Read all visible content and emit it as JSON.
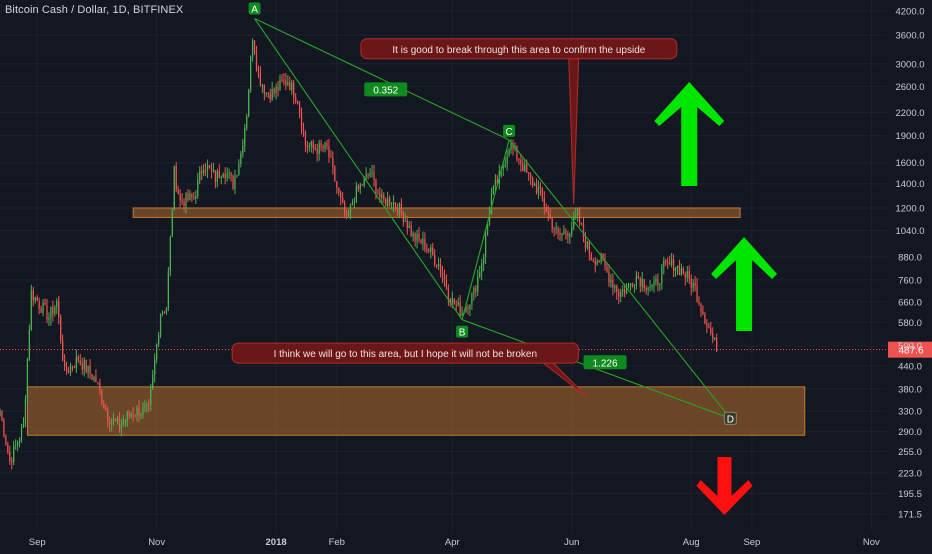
{
  "title": "Bitcoin Cash / Dollar, 1D, BITFINEX",
  "colors": {
    "background": "#131722",
    "grid": "#1e2230",
    "axis_text": "#c8ccd6",
    "candle_up": "#4caf50",
    "candle_down": "#ef5350",
    "pattern_line": "#26a726",
    "zone_fill": "#a0632a",
    "zone_stroke": "#c27a35",
    "callout_fill": "#6b1717",
    "callout_border": "#b32a2a",
    "green_label": "#0f8a1e",
    "price_line": "#ef5350",
    "arrow_green": "#00e600",
    "arrow_red": "#ff1010"
  },
  "chart_data": {
    "type": "candlestick",
    "symbol": "Bitcoin Cash / Dollar",
    "interval": "1D",
    "exchange": "BITFINEX",
    "y_scale": "log",
    "ylim": [
      155,
      4500
    ],
    "x_range": [
      "2017-08-13",
      "2018-11-09"
    ],
    "x_tick_labels": [
      {
        "date": "2017-09-01",
        "label": "Sep"
      },
      {
        "date": "2017-11-01",
        "label": "Nov"
      },
      {
        "date": "2018-01-01",
        "label": "2018"
      },
      {
        "date": "2018-02-01",
        "label": "Feb"
      },
      {
        "date": "2018-04-01",
        "label": "Apr"
      },
      {
        "date": "2018-06-01",
        "label": "Jun"
      },
      {
        "date": "2018-08-01",
        "label": "Aug"
      },
      {
        "date": "2018-09-01",
        "label": "Sep"
      },
      {
        "date": "2018-11-01",
        "label": "Nov"
      }
    ],
    "y_tick_labels": [
      {
        "value": 4200,
        "label": "4200.0"
      },
      {
        "value": 3600,
        "label": "3600.0"
      },
      {
        "value": 3000,
        "label": "3000.0"
      },
      {
        "value": 2600,
        "label": "2600.0"
      },
      {
        "value": 2200,
        "label": "2200.0"
      },
      {
        "value": 1900,
        "label": "1900.0"
      },
      {
        "value": 1600,
        "label": "1600.0"
      },
      {
        "value": 1400,
        "label": "1400.0"
      },
      {
        "value": 1200,
        "label": "1200.0"
      },
      {
        "value": 1040,
        "label": "1040.0"
      },
      {
        "value": 880,
        "label": "880.0"
      },
      {
        "value": 760,
        "label": "760.0"
      },
      {
        "value": 660,
        "label": "660.0"
      },
      {
        "value": 580,
        "label": "580.0"
      },
      {
        "value": 500,
        "label": "500.0"
      },
      {
        "value": 440,
        "label": "440.0"
      },
      {
        "value": 380,
        "label": "380.0"
      },
      {
        "value": 330,
        "label": "330.0"
      },
      {
        "value": 290,
        "label": "290.0"
      },
      {
        "value": 255,
        "label": "255.0"
      },
      {
        "value": 223,
        "label": "223.0"
      },
      {
        "value": 195.5,
        "label": "195.5"
      },
      {
        "value": 171.5,
        "label": "171.5"
      }
    ],
    "last_price": {
      "value": 487.6,
      "label": "487.6"
    },
    "close_anchors": [
      [
        "2017-08-13",
        330
      ],
      [
        "2017-08-18",
        240
      ],
      [
        "2017-08-25",
        300
      ],
      [
        "2017-08-29",
        700
      ],
      [
        "2017-09-07",
        600
      ],
      [
        "2017-09-11",
        660
      ],
      [
        "2017-09-15",
        420
      ],
      [
        "2017-09-22",
        460
      ],
      [
        "2017-10-01",
        400
      ],
      [
        "2017-10-07",
        320
      ],
      [
        "2017-10-13",
        300
      ],
      [
        "2017-10-20",
        330
      ],
      [
        "2017-10-28",
        330
      ],
      [
        "2017-11-03",
        620
      ],
      [
        "2017-11-06",
        640
      ],
      [
        "2017-11-10",
        1500
      ],
      [
        "2017-11-13",
        1250
      ],
      [
        "2017-11-20",
        1280
      ],
      [
        "2017-11-25",
        1600
      ],
      [
        "2017-12-01",
        1450
      ],
      [
        "2017-12-05",
        1550
      ],
      [
        "2017-12-10",
        1400
      ],
      [
        "2017-12-14",
        1700
      ],
      [
        "2017-12-17",
        2200
      ],
      [
        "2017-12-20",
        3600
      ],
      [
        "2017-12-23",
        2800
      ],
      [
        "2017-12-27",
        2500
      ],
      [
        "2017-12-31",
        2500
      ],
      [
        "2018-01-04",
        2650
      ],
      [
        "2018-01-07",
        2700
      ],
      [
        "2018-01-12",
        2400
      ],
      [
        "2018-01-16",
        1800
      ],
      [
        "2018-01-20",
        1750
      ],
      [
        "2018-01-27",
        1750
      ],
      [
        "2018-02-02",
        1300
      ],
      [
        "2018-02-06",
        1100
      ],
      [
        "2018-02-10",
        1300
      ],
      [
        "2018-02-18",
        1500
      ],
      [
        "2018-02-24",
        1250
      ],
      [
        "2018-03-01",
        1260
      ],
      [
        "2018-03-07",
        1150
      ],
      [
        "2018-03-12",
        1000
      ],
      [
        "2018-03-18",
        950
      ],
      [
        "2018-03-25",
        840
      ],
      [
        "2018-04-01",
        660
      ],
      [
        "2018-04-06",
        620
      ],
      [
        "2018-04-12",
        700
      ],
      [
        "2018-04-17",
        900
      ],
      [
        "2018-04-21",
        1300
      ],
      [
        "2018-04-26",
        1500
      ],
      [
        "2018-04-30",
        1800
      ],
      [
        "2018-05-05",
        1650
      ],
      [
        "2018-05-10",
        1450
      ],
      [
        "2018-05-15",
        1350
      ],
      [
        "2018-05-20",
        1150
      ],
      [
        "2018-05-25",
        1000
      ],
      [
        "2018-05-31",
        1050
      ],
      [
        "2018-06-04",
        1150
      ],
      [
        "2018-06-07",
        1000
      ],
      [
        "2018-06-11",
        880
      ],
      [
        "2018-06-16",
        860
      ],
      [
        "2018-06-20",
        780
      ],
      [
        "2018-06-25",
        700
      ],
      [
        "2018-06-29",
        720
      ],
      [
        "2018-07-04",
        780
      ],
      [
        "2018-07-09",
        740
      ],
      [
        "2018-07-13",
        720
      ],
      [
        "2018-07-18",
        820
      ],
      [
        "2018-07-23",
        840
      ],
      [
        "2018-07-28",
        800
      ],
      [
        "2018-08-03",
        720
      ],
      [
        "2018-08-07",
        620
      ],
      [
        "2018-08-11",
        540
      ],
      [
        "2018-08-14",
        487.6
      ]
    ],
    "patterns": {
      "points": [
        {
          "label": "A",
          "date": "2017-12-21",
          "price": 4000
        },
        {
          "label": "B",
          "date": "2018-04-06",
          "price": 590
        },
        {
          "label": "C",
          "date": "2018-04-30",
          "price": 1850
        },
        {
          "label": "D",
          "date": "2018-08-21",
          "price": 315
        }
      ],
      "ratios": [
        {
          "label": "0.352",
          "between": "A-C",
          "date": "2018-02-26",
          "price": 2550
        },
        {
          "label": "1.226",
          "between": "B-D",
          "date": "2018-06-18",
          "price": 450
        }
      ]
    },
    "zones": [
      {
        "name": "resistance",
        "from_date": "2017-10-20",
        "to_date": "2018-08-26",
        "low": 1130,
        "high": 1200
      },
      {
        "name": "support",
        "from_date": "2017-08-27",
        "to_date": "2018-09-28",
        "low": 283,
        "high": 385
      }
    ],
    "annotations": [
      {
        "name": "upside-callout",
        "text": "It is good to break through this area to confirm the upside",
        "date": "2018-05-05",
        "price": 3300,
        "target_date": "2018-06-02",
        "target_price": 1230
      },
      {
        "name": "support-callout",
        "text": "I think we will go to this area, but I hope it will not be broken",
        "date": "2018-03-08",
        "price": 477,
        "target_date": "2018-06-09",
        "target_price": 360
      }
    ],
    "arrows": [
      {
        "name": "up-arrow-large",
        "direction": "up",
        "color": "green",
        "date": "2018-07-31",
        "price": 1920
      },
      {
        "name": "up-arrow-small",
        "direction": "up",
        "color": "green",
        "date": "2018-08-28",
        "price": 740
      },
      {
        "name": "down-arrow",
        "direction": "down",
        "color": "red",
        "date": "2018-08-18",
        "price": 205
      }
    ]
  }
}
